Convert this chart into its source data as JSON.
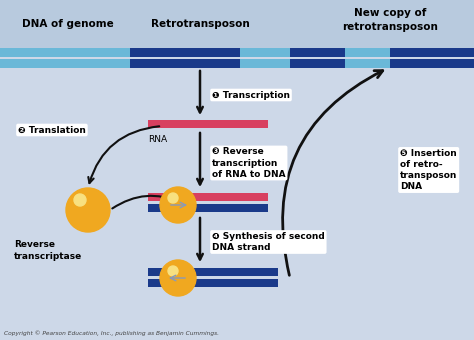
{
  "background_color": "#cdd8e8",
  "header_color": "#b8cade",
  "title_top_left": "DNA of genome",
  "title_top_mid": "Retrotransposon",
  "title_top_right": "New copy of\nretrotransposon",
  "copyright": "Copyright © Pearson Education, Inc., publishing as Benjamin Cummings.",
  "light_blue": "#6ab8d8",
  "dark_blue": "#1a3a8a",
  "rna_color": "#d84060",
  "enzyme_color": "#f0a820",
  "enzyme_highlight": "#f8e080",
  "arrow_color": "#111111",
  "step1": "❶ Transcription",
  "step2": "❷ Translation",
  "step3": "❸ Reverse\ntranscription\nof RNA to DNA",
  "step4": "❹ Synthesis of second\nDNA strand",
  "step5": "❺ Insertion\nof retro-\ntransposon\nDNA",
  "label_rna": "RNA",
  "label_reverse": "Reverse\ntranscriptase"
}
